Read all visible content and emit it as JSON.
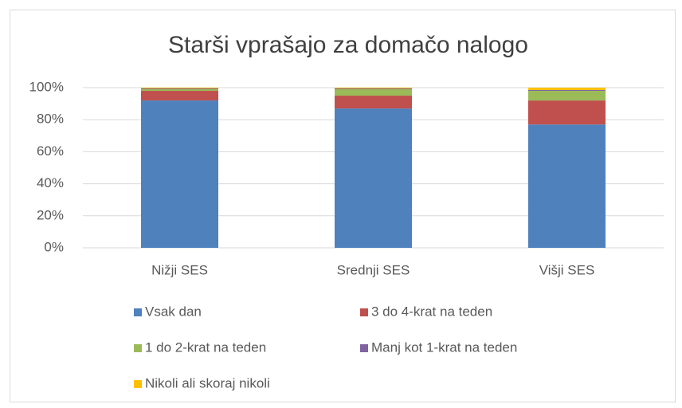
{
  "chart_data": {
    "type": "stacked_bar",
    "title": "Starši vprašajo za domačo nalogo",
    "categories": [
      "Nižji SES",
      "Srednji SES",
      "Višji SES"
    ],
    "series": [
      {
        "name": "Vsak dan",
        "color": "#4f81bd",
        "values": [
          92,
          87,
          77
        ]
      },
      {
        "name": "3 do 4-krat na teden",
        "color": "#c0504d",
        "values": [
          6,
          8,
          15
        ]
      },
      {
        "name": "1 do 2-krat na teden",
        "color": "#9bbb59",
        "values": [
          1,
          4,
          6
        ]
      },
      {
        "name": "Manj kot 1-krat na teden",
        "color": "#8064a2",
        "values": [
          0.5,
          0.5,
          0.5
        ]
      },
      {
        "name": "Nikoli ali skoraj nikoli",
        "color": "#ffc000",
        "values": [
          0.5,
          0.5,
          1.5
        ]
      }
    ],
    "ylim": [
      0,
      100
    ],
    "yticks": [
      {
        "value": 0,
        "label": "0%"
      },
      {
        "value": 20,
        "label": "20%"
      },
      {
        "value": 40,
        "label": "40%"
      },
      {
        "value": 60,
        "label": "60%"
      },
      {
        "value": 80,
        "label": "80%"
      },
      {
        "value": 100,
        "label": "100%"
      }
    ],
    "grid": true,
    "legend": "bottom"
  }
}
